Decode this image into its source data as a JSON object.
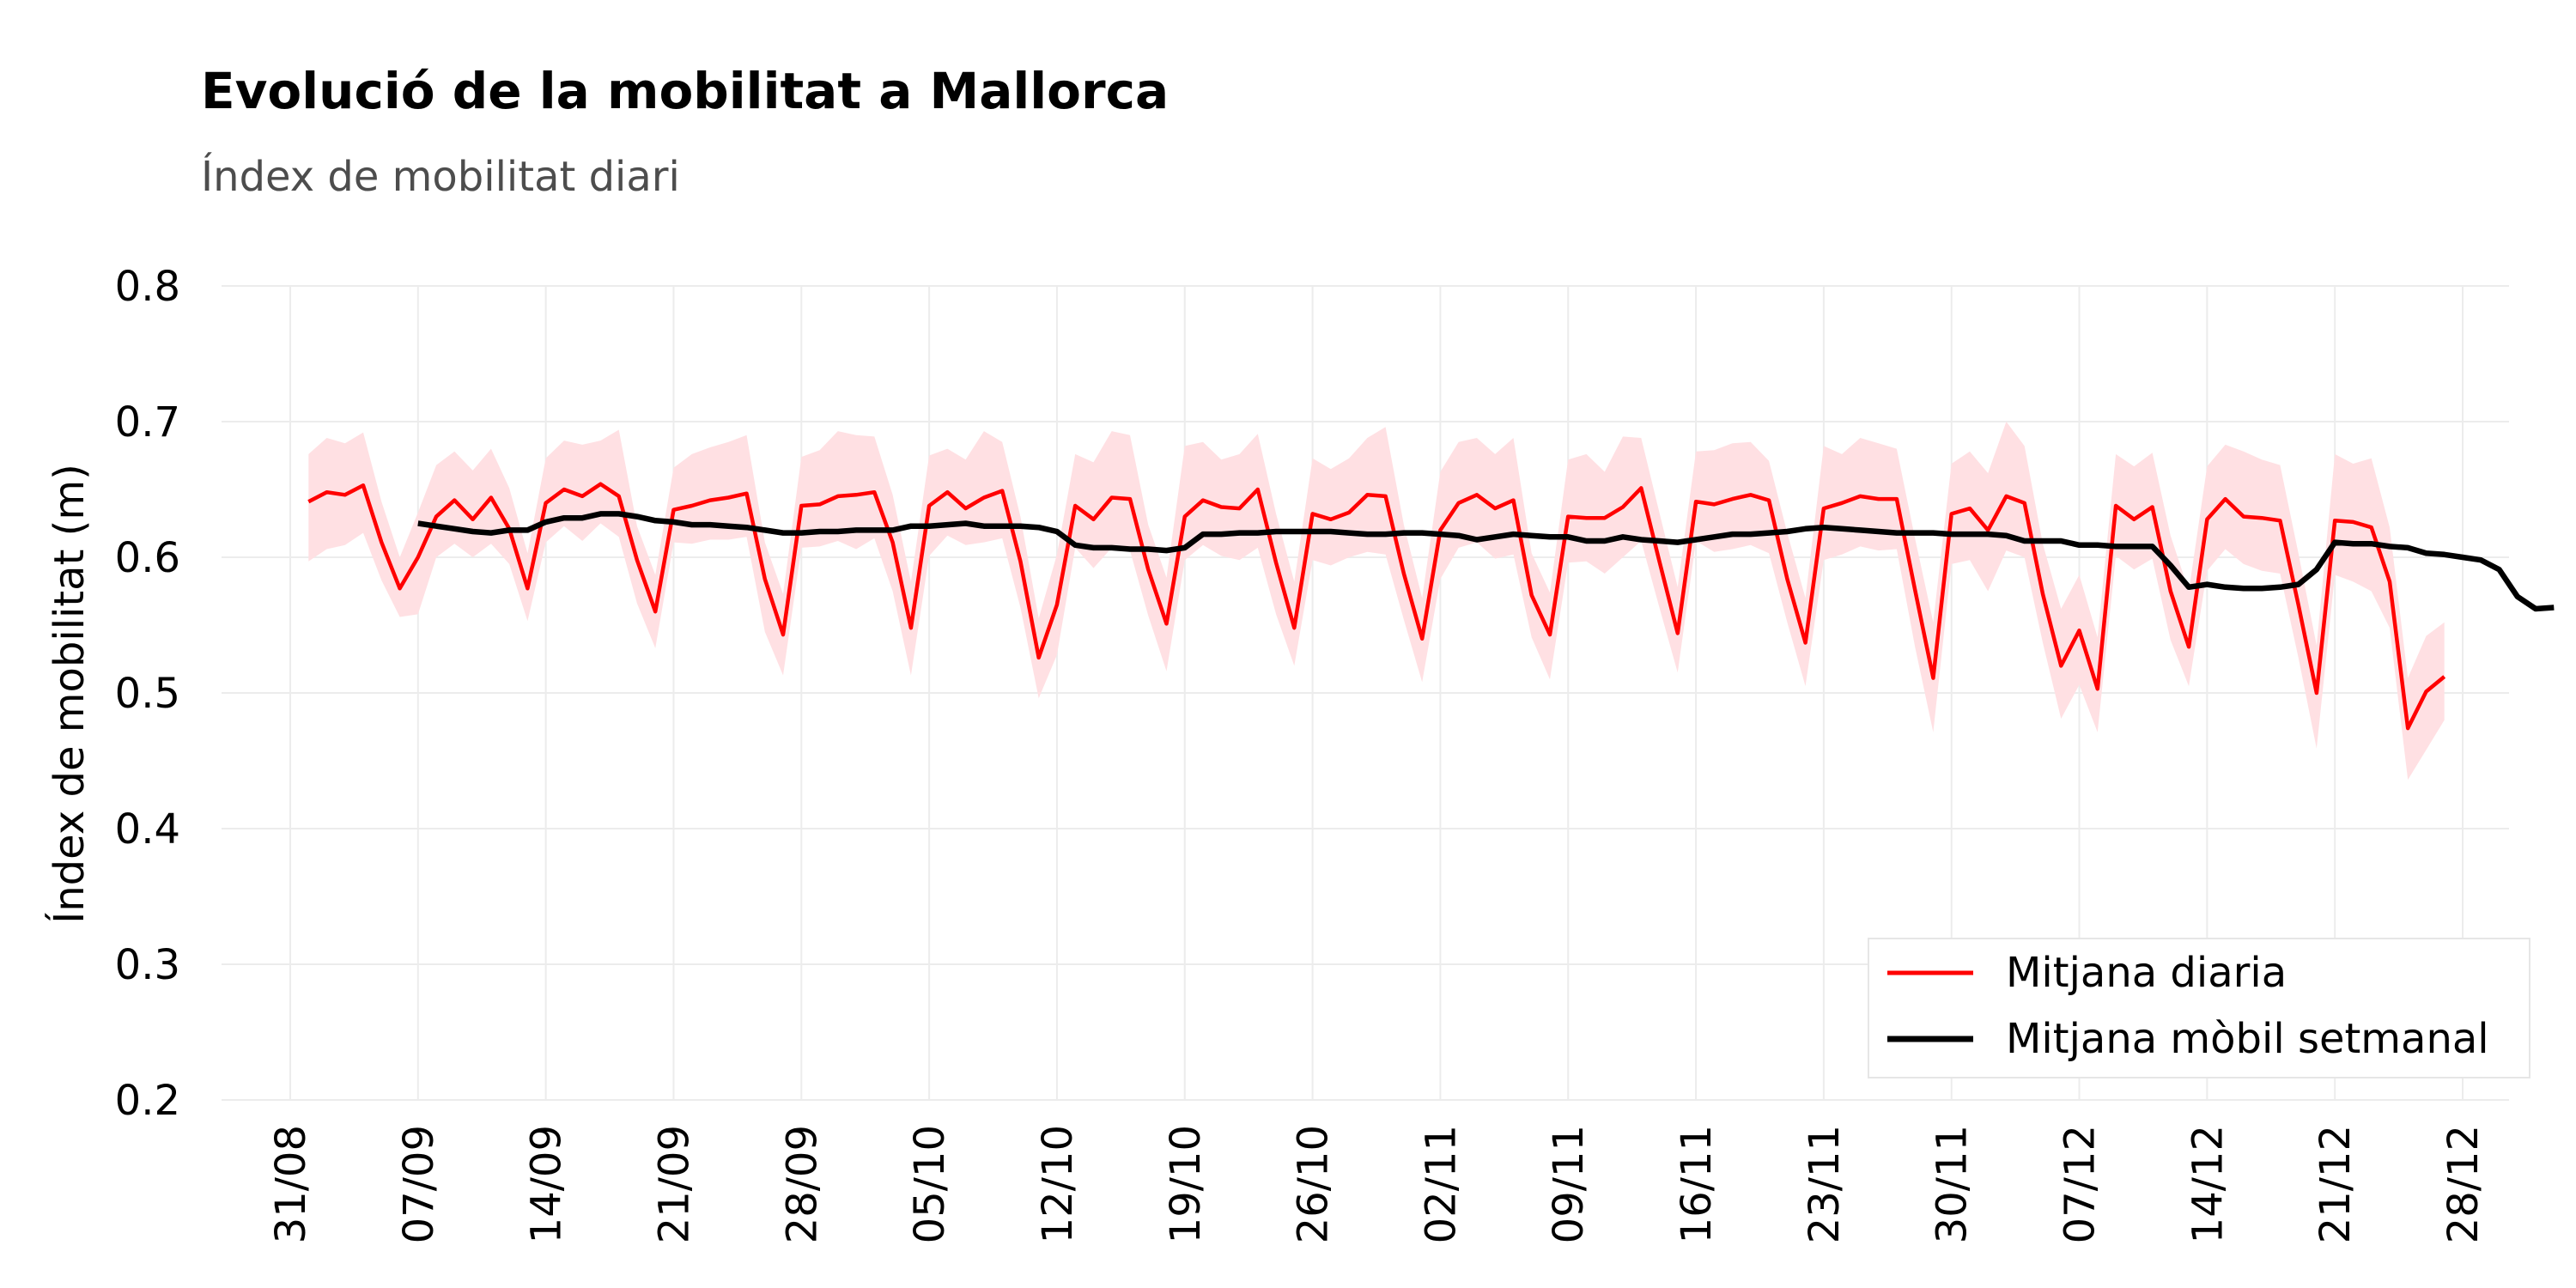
{
  "chart_data": {
    "type": "line",
    "title": "Evolució de la mobilitat a Mallorca",
    "subtitle": "Índex de mobilitat diari",
    "ylabel": "Índex de mobilitat (m)",
    "xlabel": "",
    "ylim": [
      0.2,
      0.8
    ],
    "yticks": [
      0.2,
      0.3,
      0.4,
      0.5,
      0.6,
      0.7,
      0.8
    ],
    "ytick_labels": [
      "0.2",
      "0.3",
      "0.4",
      "0.5",
      "0.6",
      "0.7",
      "0.8"
    ],
    "xtick_labels": [
      "31/08",
      "07/09",
      "14/09",
      "21/09",
      "28/09",
      "05/10",
      "12/10",
      "19/10",
      "26/10",
      "02/11",
      "09/11",
      "16/11",
      "23/11",
      "30/11",
      "07/12",
      "14/12",
      "21/12",
      "28/12"
    ],
    "x_start": "2020-08-31",
    "x_end": "2020-12-28",
    "grid": true,
    "legend_position": "bottom-right",
    "colors": {
      "daily": "#ff0000",
      "band": "#ffe0e3",
      "rolling": "#000000"
    },
    "series": [
      {
        "name": "Mitjana diaria",
        "start": "2020-09-01",
        "values": [
          0.641,
          0.648,
          0.646,
          0.653,
          0.611,
          0.577,
          0.6,
          0.63,
          0.642,
          0.628,
          0.644,
          0.621,
          0.577,
          0.64,
          0.65,
          0.645,
          0.654,
          0.645,
          0.598,
          0.56,
          0.635,
          0.638,
          0.642,
          0.644,
          0.647,
          0.584,
          0.543,
          0.638,
          0.639,
          0.645,
          0.646,
          0.648,
          0.611,
          0.548,
          0.638,
          0.648,
          0.636,
          0.644,
          0.649,
          0.597,
          0.526,
          0.565,
          0.638,
          0.628,
          0.644,
          0.643,
          0.591,
          0.551,
          0.63,
          0.642,
          0.637,
          0.636,
          0.65,
          0.596,
          0.548,
          0.632,
          0.628,
          0.633,
          0.646,
          0.645,
          0.588,
          0.54,
          0.62,
          0.64,
          0.646,
          0.636,
          0.642,
          0.572,
          0.543,
          0.63,
          0.629,
          0.629,
          0.637,
          0.651,
          0.597,
          0.544,
          0.641,
          0.639,
          0.643,
          0.646,
          0.642,
          0.584,
          0.537,
          0.636,
          0.64,
          0.645,
          0.643,
          0.643,
          0.576,
          0.511,
          0.632,
          0.636,
          0.62,
          0.645,
          0.64,
          0.573,
          0.52,
          0.546,
          0.503,
          0.638,
          0.628,
          0.637,
          0.575,
          0.534,
          0.628,
          0.643,
          0.63,
          0.629,
          0.627,
          0.565,
          0.5,
          0.627,
          0.626,
          0.622,
          0.582,
          0.474,
          0.501,
          0.512
        ],
        "lower": [
          0.597,
          0.606,
          0.609,
          0.618,
          0.583,
          0.556,
          0.558,
          0.6,
          0.61,
          0.6,
          0.61,
          0.595,
          0.553,
          0.611,
          0.623,
          0.612,
          0.625,
          0.615,
          0.566,
          0.533,
          0.611,
          0.61,
          0.613,
          0.613,
          0.615,
          0.545,
          0.513,
          0.607,
          0.608,
          0.612,
          0.606,
          0.614,
          0.575,
          0.513,
          0.601,
          0.616,
          0.609,
          0.611,
          0.614,
          0.563,
          0.496,
          0.528,
          0.607,
          0.592,
          0.607,
          0.605,
          0.557,
          0.516,
          0.598,
          0.609,
          0.601,
          0.598,
          0.607,
          0.558,
          0.52,
          0.598,
          0.594,
          0.6,
          0.604,
          0.602,
          0.554,
          0.508,
          0.584,
          0.607,
          0.611,
          0.599,
          0.602,
          0.541,
          0.51,
          0.596,
          0.597,
          0.588,
          0.6,
          0.612,
          0.563,
          0.515,
          0.612,
          0.604,
          0.606,
          0.609,
          0.603,
          0.552,
          0.505,
          0.598,
          0.602,
          0.608,
          0.605,
          0.606,
          0.534,
          0.471,
          0.595,
          0.598,
          0.575,
          0.605,
          0.6,
          0.537,
          0.481,
          0.506,
          0.471,
          0.601,
          0.591,
          0.599,
          0.539,
          0.505,
          0.59,
          0.606,
          0.595,
          0.59,
          0.588,
          0.526,
          0.459,
          0.587,
          0.582,
          0.575,
          0.548,
          0.436,
          0.458,
          0.48
        ],
        "upper": [
          0.676,
          0.688,
          0.684,
          0.692,
          0.641,
          0.6,
          0.633,
          0.668,
          0.678,
          0.664,
          0.68,
          0.651,
          0.603,
          0.673,
          0.686,
          0.683,
          0.686,
          0.694,
          0.623,
          0.587,
          0.666,
          0.676,
          0.681,
          0.685,
          0.69,
          0.611,
          0.573,
          0.674,
          0.679,
          0.693,
          0.69,
          0.689,
          0.646,
          0.582,
          0.675,
          0.68,
          0.672,
          0.693,
          0.685,
          0.63,
          0.555,
          0.602,
          0.676,
          0.67,
          0.693,
          0.69,
          0.624,
          0.585,
          0.682,
          0.685,
          0.672,
          0.676,
          0.691,
          0.632,
          0.582,
          0.673,
          0.665,
          0.673,
          0.688,
          0.696,
          0.624,
          0.57,
          0.663,
          0.685,
          0.688,
          0.676,
          0.688,
          0.603,
          0.574,
          0.672,
          0.676,
          0.663,
          0.689,
          0.688,
          0.633,
          0.578,
          0.678,
          0.679,
          0.684,
          0.685,
          0.671,
          0.618,
          0.57,
          0.682,
          0.676,
          0.688,
          0.684,
          0.68,
          0.614,
          0.552,
          0.669,
          0.678,
          0.662,
          0.7,
          0.682,
          0.61,
          0.562,
          0.587,
          0.541,
          0.676,
          0.667,
          0.677,
          0.616,
          0.575,
          0.667,
          0.683,
          0.678,
          0.672,
          0.668,
          0.603,
          0.535,
          0.676,
          0.669,
          0.673,
          0.622,
          0.511,
          0.542,
          0.552
        ]
      },
      {
        "name": "Mitjana mòbil setmanal",
        "start": "2020-09-07",
        "values": [
          0.625,
          0.623,
          0.621,
          0.619,
          0.618,
          0.62,
          0.62,
          0.626,
          0.629,
          0.629,
          0.632,
          0.632,
          0.63,
          0.627,
          0.626,
          0.624,
          0.624,
          0.623,
          0.622,
          0.62,
          0.618,
          0.618,
          0.619,
          0.619,
          0.62,
          0.62,
          0.62,
          0.623,
          0.623,
          0.624,
          0.625,
          0.623,
          0.623,
          0.623,
          0.622,
          0.619,
          0.609,
          0.607,
          0.607,
          0.606,
          0.606,
          0.605,
          0.607,
          0.617,
          0.617,
          0.618,
          0.618,
          0.619,
          0.619,
          0.619,
          0.619,
          0.618,
          0.617,
          0.617,
          0.618,
          0.618,
          0.617,
          0.616,
          0.613,
          0.615,
          0.617,
          0.616,
          0.615,
          0.615,
          0.612,
          0.612,
          0.615,
          0.613,
          0.612,
          0.611,
          0.613,
          0.615,
          0.617,
          0.617,
          0.618,
          0.619,
          0.621,
          0.622,
          0.621,
          0.62,
          0.619,
          0.618,
          0.618,
          0.618,
          0.617,
          0.617,
          0.617,
          0.616,
          0.612,
          0.612,
          0.612,
          0.609,
          0.609,
          0.608,
          0.608,
          0.608,
          0.594,
          0.578,
          0.58,
          0.578,
          0.577,
          0.577,
          0.578,
          0.58,
          0.591,
          0.611,
          0.61,
          0.61,
          0.608,
          0.607,
          0.603,
          0.602,
          0.6,
          0.598,
          0.591,
          0.571,
          0.562,
          0.563
        ]
      }
    ]
  }
}
